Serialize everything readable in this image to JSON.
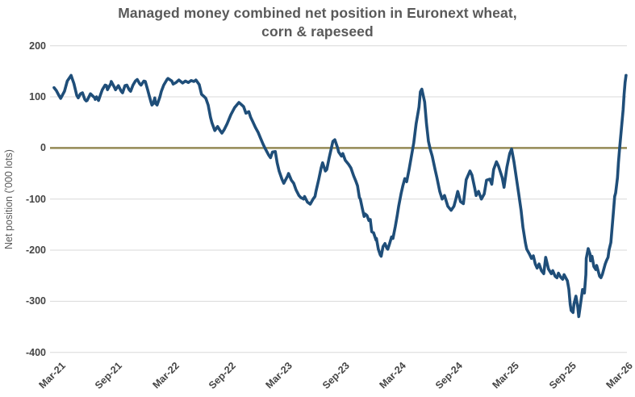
{
  "chart_data": {
    "type": "line",
    "title": "Managed money combined net position in Euronext wheat, corn & rapeseed",
    "title_lines": [
      "Managed money combined net position in Euronext wheat,",
      "corn & rapeseed"
    ],
    "xlabel": "",
    "ylabel": "Net position ('000 lots)",
    "ylim": [
      -400,
      200
    ],
    "xlim_months": [
      0,
      60.6
    ],
    "y_ticks": [
      200,
      100,
      0,
      -100,
      -200,
      -300,
      -400
    ],
    "y_tick_labels": [
      "200",
      "100",
      "0",
      "-100",
      "-200",
      "-300",
      "-400"
    ],
    "x_tick_months": [
      0,
      6,
      12,
      18,
      24,
      30,
      36,
      42,
      48,
      54,
      60
    ],
    "x_tick_labels": [
      "Mar-21",
      "Sep-21",
      "Mar-22",
      "Sep-22",
      "Mar-23",
      "Sep-23",
      "Mar-24",
      "Sep-24",
      "Mar-25",
      "Sep-25",
      "Mar-26"
    ],
    "grid": "horizontal-only",
    "legend": "none",
    "zero_line": true,
    "colors": {
      "line": "#1F4E79",
      "zero_line": "#948A54",
      "gridline": "#D9D9D9",
      "title_text": "#595959",
      "tick_text": "#454545"
    },
    "series": [
      {
        "name": "Managed money combined net position",
        "units": "'000 lots",
        "points": [
          [
            0,
            118
          ],
          [
            0.25,
            112
          ],
          [
            0.5,
            103
          ],
          [
            0.7,
            97
          ],
          [
            1.1,
            111
          ],
          [
            1.4,
            131
          ],
          [
            1.7,
            139
          ],
          [
            1.8,
            142
          ],
          [
            2.1,
            126
          ],
          [
            2.4,
            103
          ],
          [
            2.55,
            98
          ],
          [
            2.8,
            106
          ],
          [
            3,
            108
          ],
          [
            3.25,
            95
          ],
          [
            3.4,
            92
          ],
          [
            3.5,
            93
          ],
          [
            3.85,
            106
          ],
          [
            4.3,
            98
          ],
          [
            4.35,
            95
          ],
          [
            4.5,
            100
          ],
          [
            4.7,
            93
          ],
          [
            4.95,
            106
          ],
          [
            5.1,
            114
          ],
          [
            5.4,
            123
          ],
          [
            5.55,
            122
          ],
          [
            5.65,
            114
          ],
          [
            6,
            126
          ],
          [
            6.05,
            130
          ],
          [
            6.4,
            118
          ],
          [
            6.5,
            114
          ],
          [
            6.8,
            122
          ],
          [
            7.1,
            111
          ],
          [
            7.25,
            108
          ],
          [
            7.5,
            122
          ],
          [
            7.7,
            123
          ],
          [
            7.95,
            114
          ],
          [
            8.1,
            111
          ],
          [
            8.35,
            123
          ],
          [
            8.6,
            131
          ],
          [
            8.8,
            134
          ],
          [
            9.05,
            126
          ],
          [
            9.2,
            123
          ],
          [
            9.5,
            131
          ],
          [
            9.65,
            130
          ],
          [
            9.9,
            114
          ],
          [
            10.05,
            103
          ],
          [
            10.25,
            90
          ],
          [
            10.35,
            84
          ],
          [
            10.5,
            87
          ],
          [
            10.65,
            98
          ],
          [
            10.75,
            87
          ],
          [
            10.9,
            84
          ],
          [
            11.2,
            100
          ],
          [
            11.35,
            111
          ],
          [
            11.6,
            123
          ],
          [
            11.95,
            134
          ],
          [
            12.05,
            136
          ],
          [
            12.45,
            131
          ],
          [
            12.6,
            125
          ],
          [
            12.9,
            128
          ],
          [
            13.2,
            133
          ],
          [
            13.6,
            127
          ],
          [
            13.9,
            131
          ],
          [
            14.2,
            128
          ],
          [
            14.5,
            132
          ],
          [
            14.8,
            130
          ],
          [
            15,
            133
          ],
          [
            15.35,
            124
          ],
          [
            15.6,
            105
          ],
          [
            15.9,
            100
          ],
          [
            16.05,
            97
          ],
          [
            16.3,
            84
          ],
          [
            16.55,
            60
          ],
          [
            16.7,
            49
          ],
          [
            17,
            34
          ],
          [
            17.3,
            42
          ],
          [
            17.5,
            36
          ],
          [
            17.75,
            29
          ],
          [
            18,
            36
          ],
          [
            18.3,
            47
          ],
          [
            18.7,
            65
          ],
          [
            19.1,
            79
          ],
          [
            19.55,
            89
          ],
          [
            19.8,
            85
          ],
          [
            20.05,
            81
          ],
          [
            20.3,
            68
          ],
          [
            20.6,
            71
          ],
          [
            20.8,
            60
          ],
          [
            21,
            52
          ],
          [
            21.3,
            40
          ],
          [
            21.6,
            30
          ],
          [
            21.8,
            21
          ],
          [
            22.1,
            8
          ],
          [
            22.3,
            0
          ],
          [
            22.7,
            -14
          ],
          [
            22.9,
            -19
          ],
          [
            23.1,
            -8
          ],
          [
            23.4,
            -7
          ],
          [
            23.6,
            -29
          ],
          [
            23.8,
            -45
          ],
          [
            24.1,
            -61
          ],
          [
            24.3,
            -69
          ],
          [
            24.7,
            -55
          ],
          [
            24.8,
            -50
          ],
          [
            25.1,
            -63
          ],
          [
            25.35,
            -69
          ],
          [
            25.6,
            -82
          ],
          [
            25.9,
            -93
          ],
          [
            26.1,
            -97
          ],
          [
            26.4,
            -100
          ],
          [
            26.5,
            -95
          ],
          [
            26.8,
            -106
          ],
          [
            27.1,
            -110
          ],
          [
            27.4,
            -100
          ],
          [
            27.6,
            -95
          ],
          [
            27.7,
            -85
          ],
          [
            28,
            -61
          ],
          [
            28.25,
            -39
          ],
          [
            28.4,
            -29
          ],
          [
            28.7,
            -45
          ],
          [
            28.85,
            -42
          ],
          [
            29.1,
            -19
          ],
          [
            29.3,
            -3
          ],
          [
            29.5,
            13
          ],
          [
            29.7,
            16
          ],
          [
            30,
            0
          ],
          [
            30.1,
            -8
          ],
          [
            30.4,
            -16
          ],
          [
            30.55,
            -11
          ],
          [
            30.8,
            -24
          ],
          [
            31.15,
            -32
          ],
          [
            31.4,
            -39
          ],
          [
            31.7,
            -55
          ],
          [
            31.9,
            -64
          ],
          [
            32.1,
            -74
          ],
          [
            32.3,
            -97
          ],
          [
            32.4,
            -100
          ],
          [
            32.6,
            -118
          ],
          [
            32.8,
            -134
          ],
          [
            32.9,
            -129
          ],
          [
            33.1,
            -132
          ],
          [
            33.3,
            -142
          ],
          [
            33.45,
            -140
          ],
          [
            33.6,
            -164
          ],
          [
            33.8,
            -166
          ],
          [
            34.05,
            -180
          ],
          [
            34.1,
            -177
          ],
          [
            34.3,
            -198
          ],
          [
            34.5,
            -209
          ],
          [
            34.6,
            -212
          ],
          [
            34.8,
            -193
          ],
          [
            35,
            -187
          ],
          [
            35.2,
            -196
          ],
          [
            35.3,
            -198
          ],
          [
            35.5,
            -187
          ],
          [
            35.7,
            -174
          ],
          [
            35.85,
            -177
          ],
          [
            36.1,
            -153
          ],
          [
            36.3,
            -132
          ],
          [
            36.45,
            -114
          ],
          [
            36.7,
            -90
          ],
          [
            36.9,
            -74
          ],
          [
            37.1,
            -60
          ],
          [
            37.3,
            -66
          ],
          [
            37.55,
            -42
          ],
          [
            37.8,
            -16
          ],
          [
            38.05,
            10
          ],
          [
            38.3,
            47
          ],
          [
            38.6,
            80
          ],
          [
            38.75,
            110
          ],
          [
            38.9,
            115
          ],
          [
            39.2,
            90
          ],
          [
            39.4,
            47
          ],
          [
            39.6,
            13
          ],
          [
            39.8,
            -3
          ],
          [
            40,
            -16
          ],
          [
            40.3,
            -42
          ],
          [
            40.5,
            -58
          ],
          [
            40.8,
            -85
          ],
          [
            41.05,
            -100
          ],
          [
            41.3,
            -93
          ],
          [
            41.65,
            -114
          ],
          [
            42,
            -122
          ],
          [
            42.3,
            -114
          ],
          [
            42.5,
            -100
          ],
          [
            42.7,
            -85
          ],
          [
            43,
            -105
          ],
          [
            43.3,
            -109
          ],
          [
            43.6,
            -62
          ],
          [
            44,
            -45
          ],
          [
            44.2,
            -53
          ],
          [
            44.5,
            -79
          ],
          [
            44.65,
            -93
          ],
          [
            44.9,
            -85
          ],
          [
            45.2,
            -100
          ],
          [
            45.5,
            -90
          ],
          [
            45.75,
            -63
          ],
          [
            46.1,
            -61
          ],
          [
            46.3,
            -71
          ],
          [
            46.5,
            -42
          ],
          [
            46.8,
            -27
          ],
          [
            47,
            -35
          ],
          [
            47.4,
            -58
          ],
          [
            47.6,
            -77
          ],
          [
            47.9,
            -38
          ],
          [
            48.2,
            -11
          ],
          [
            48.4,
            -2
          ],
          [
            48.65,
            -27
          ],
          [
            48.9,
            -58
          ],
          [
            49.15,
            -90
          ],
          [
            49.4,
            -122
          ],
          [
            49.6,
            -155
          ],
          [
            49.85,
            -185
          ],
          [
            50,
            -198
          ],
          [
            50.3,
            -208
          ],
          [
            50.5,
            -216
          ],
          [
            50.7,
            -211
          ],
          [
            50.9,
            -227
          ],
          [
            51.1,
            -235
          ],
          [
            51.3,
            -227
          ],
          [
            51.55,
            -240
          ],
          [
            51.8,
            -246
          ],
          [
            52,
            -214
          ],
          [
            52.3,
            -237
          ],
          [
            52.6,
            -246
          ],
          [
            52.75,
            -240
          ],
          [
            53,
            -251
          ],
          [
            53.2,
            -254
          ],
          [
            53.35,
            -245
          ],
          [
            53.6,
            -253
          ],
          [
            53.8,
            -257
          ],
          [
            53.95,
            -248
          ],
          [
            54.3,
            -260
          ],
          [
            54.45,
            -276
          ],
          [
            54.6,
            -306
          ],
          [
            54.7,
            -318
          ],
          [
            54.9,
            -322
          ],
          [
            55,
            -305
          ],
          [
            55.2,
            -290
          ],
          [
            55.4,
            -312
          ],
          [
            55.5,
            -330
          ],
          [
            55.65,
            -311
          ],
          [
            55.9,
            -277
          ],
          [
            56.1,
            -284
          ],
          [
            56.25,
            -248
          ],
          [
            56.3,
            -216
          ],
          [
            56.5,
            -197
          ],
          [
            56.7,
            -208
          ],
          [
            56.75,
            -221
          ],
          [
            56.9,
            -212
          ],
          [
            57.1,
            -232
          ],
          [
            57.3,
            -238
          ],
          [
            57.4,
            -230
          ],
          [
            57.7,
            -251
          ],
          [
            57.85,
            -254
          ],
          [
            58,
            -247
          ],
          [
            58.3,
            -227
          ],
          [
            58.45,
            -220
          ],
          [
            58.6,
            -214
          ],
          [
            58.7,
            -200
          ],
          [
            58.9,
            -185
          ],
          [
            59.15,
            -130
          ],
          [
            59.3,
            -95
          ],
          [
            59.4,
            -88
          ],
          [
            59.6,
            -58
          ],
          [
            59.7,
            -28
          ],
          [
            59.8,
            -5
          ],
          [
            60,
            35
          ],
          [
            60.2,
            75
          ],
          [
            60.3,
            105
          ],
          [
            60.4,
            128
          ],
          [
            60.5,
            142
          ]
        ]
      }
    ]
  }
}
